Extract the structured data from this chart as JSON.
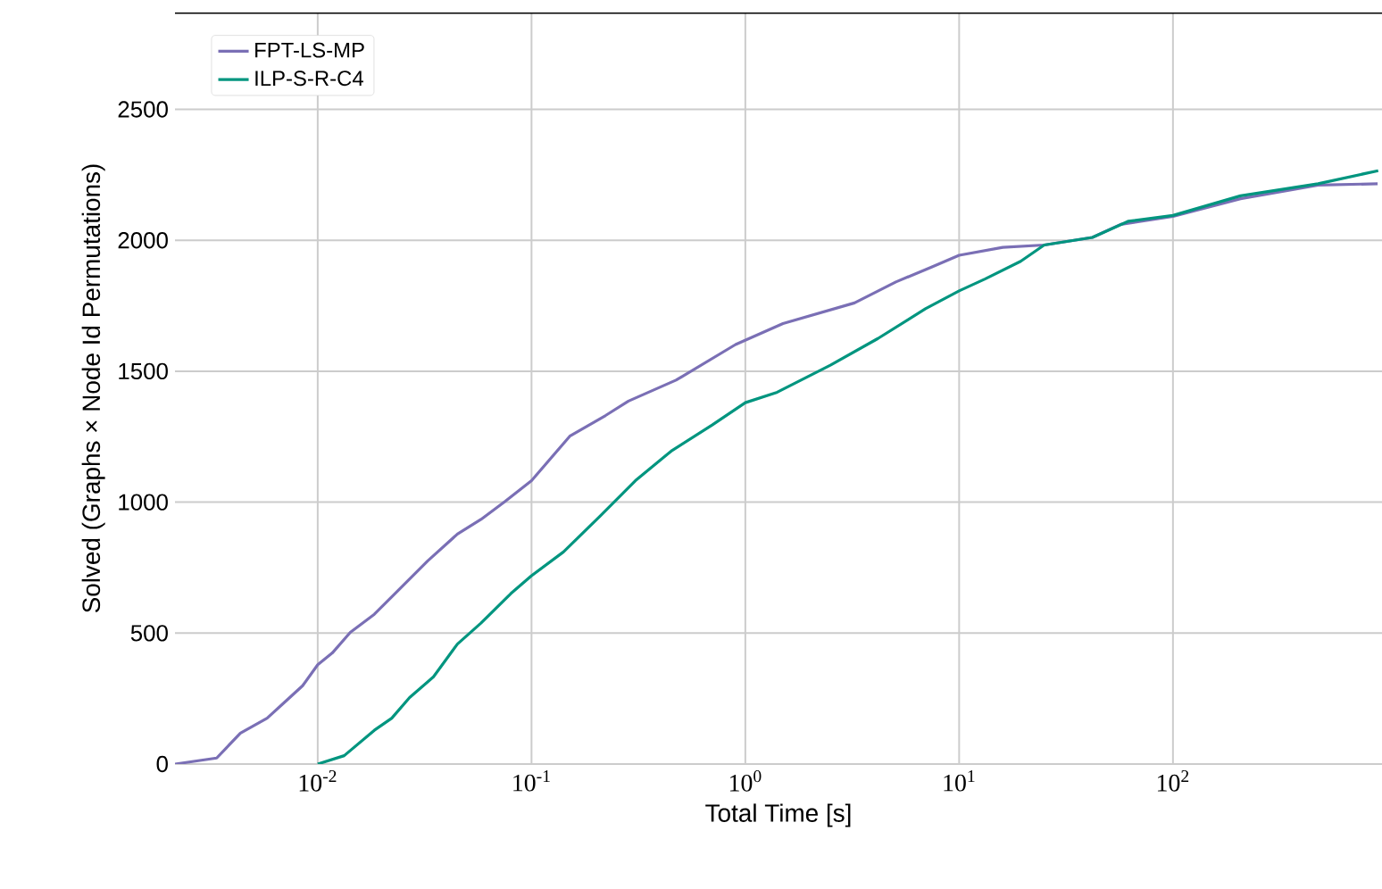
{
  "chart_data": {
    "type": "line",
    "xlabel": "Total Time [s]",
    "ylabel": "Solved (Graphs × Node Id Permutations)",
    "log": "x",
    "grid": true,
    "legend": "top left",
    "marker": "none",
    "xlim": [
      0.00215,
      950
    ],
    "ylim": [
      0,
      2870
    ],
    "xticks": [
      {
        "value": 0.01,
        "label": "10$^{-2}$"
      },
      {
        "value": 0.1,
        "label": "10$^{-1}$"
      },
      {
        "value": 1,
        "label": "10$^{0}$"
      },
      {
        "value": 10,
        "label": "10$^{1}$"
      },
      {
        "value": 100,
        "label": "10$^{2}$"
      }
    ],
    "yticks": [
      0,
      500,
      1000,
      1500,
      2000,
      2500
    ],
    "series": [
      {
        "name": "FPT-LS-MP",
        "color": "#7a6fb5",
        "x": [
          0.00215,
          0.00337,
          0.00435,
          0.0058,
          0.007,
          0.0085,
          0.01,
          0.0117,
          0.0142,
          0.0184,
          0.0237,
          0.0327,
          0.045,
          0.058,
          0.075,
          0.1,
          0.151,
          0.222,
          0.284,
          0.474,
          0.9,
          1.5,
          3.24,
          5.06,
          7.43,
          10,
          16,
          25,
          42,
          57,
          100,
          207,
          477,
          906
        ],
        "values": [
          0,
          23,
          118,
          175,
          236,
          299,
          379,
          424,
          503,
          572,
          662,
          776,
          878,
          934,
          1002,
          1082,
          1252,
          1331,
          1386,
          1466,
          1602,
          1682,
          1761,
          1841,
          1898,
          1943,
          1973,
          1982,
          2011,
          2061,
          2091,
          2159,
          2211,
          2216
        ]
      },
      {
        "name": "ILP-S-R-C4",
        "color": "#00957f",
        "x": [
          0.01,
          0.0133,
          0.0184,
          0.0222,
          0.0269,
          0.0348,
          0.045,
          0.058,
          0.08,
          0.1,
          0.141,
          0.209,
          0.306,
          0.45,
          0.7,
          1.0,
          1.41,
          2.5,
          4.17,
          6.96,
          10,
          13.2,
          19.4,
          25,
          42,
          62,
          100,
          207,
          477,
          912
        ],
        "values": [
          0,
          32,
          129,
          175,
          254,
          333,
          458,
          538,
          651,
          719,
          810,
          946,
          1082,
          1195,
          1295,
          1380,
          1420,
          1523,
          1625,
          1739,
          1807,
          1852,
          1920,
          1982,
          2011,
          2073,
          2095,
          2170,
          2216,
          2266
        ]
      }
    ]
  }
}
